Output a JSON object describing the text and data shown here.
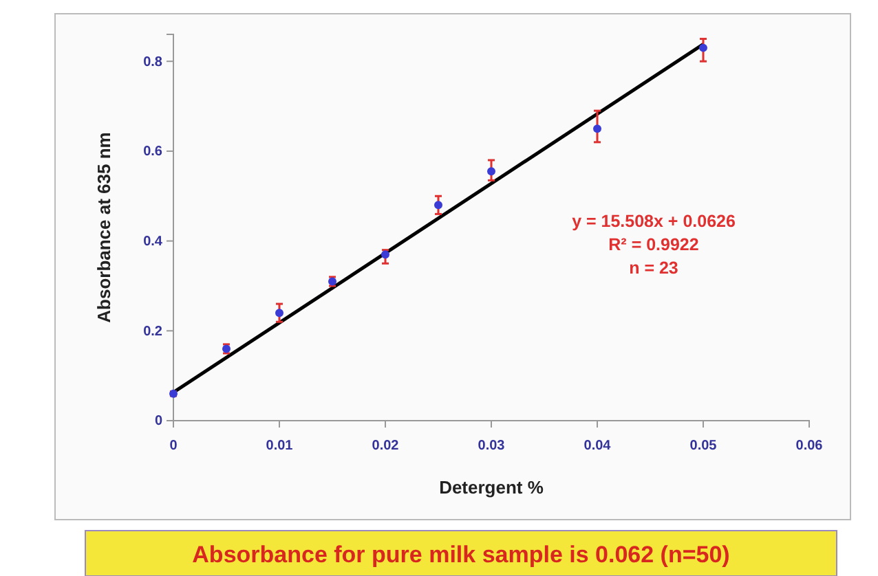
{
  "chart_data": {
    "type": "scatter",
    "xlabel": "Detergent %",
    "ylabel": "Absorbance at 635 nm",
    "xlim": [
      0,
      0.06
    ],
    "xticks": [
      0,
      0.01,
      0.02,
      0.03,
      0.04,
      0.05,
      0.06
    ],
    "ylim": [
      0,
      0.86
    ],
    "yticks": [
      0,
      0.2,
      0.4,
      0.6,
      0.8
    ],
    "grid": false,
    "series": [
      {
        "marker": "circle",
        "color": "#3b3bd6",
        "x": [
          0,
          0.005,
          0.01,
          0.015,
          0.02,
          0.025,
          0.03,
          0.04,
          0.05
        ],
        "values": [
          0.06,
          0.16,
          0.24,
          0.31,
          0.37,
          0.48,
          0.555,
          0.65,
          0.83
        ],
        "errors": [
          [
            0.055,
            0.065
          ],
          [
            0.15,
            0.17
          ],
          [
            0.22,
            0.26
          ],
          [
            0.3,
            0.32
          ],
          [
            0.35,
            0.38
          ],
          [
            0.46,
            0.5
          ],
          [
            0.535,
            0.58
          ],
          [
            0.62,
            0.69
          ],
          [
            0.8,
            0.85
          ]
        ]
      },
      {
        "type": "line",
        "marker": "none",
        "color": "#000000",
        "x": [
          0,
          0.05
        ],
        "values": [
          0.063,
          0.838
        ]
      }
    ],
    "annotations": [
      "y = 15.508x + 0.0626",
      "R² = 0.9922",
      "n = 23",
      "Absorbance for pure milk sample is 0.062 (n=50)"
    ]
  }
}
